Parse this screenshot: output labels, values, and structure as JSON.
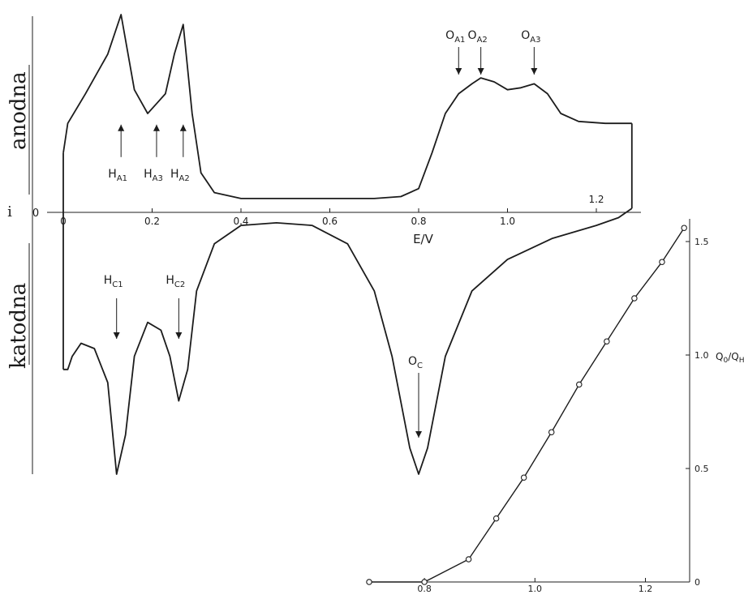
{
  "chart_data": [
    {
      "type": "line",
      "description_words": {
        "side_label_top": "anodna",
        "side_label_bottom": "katodna",
        "current_symbol": "i",
        "zero_label": "0"
      },
      "xlabel": "E/V",
      "x_ticks": [
        "0",
        "0.2",
        "0.4",
        "0.6",
        "0.8",
        "1.0",
        "1.2"
      ],
      "x_tick_values": [
        0,
        0.2,
        0.4,
        0.6,
        0.8,
        1.0,
        1.2
      ],
      "xlim": [
        -0.03,
        1.28
      ],
      "ylim": [
        -1.0,
        1.0
      ],
      "series": [
        {
          "name": "",
          "role": "anodic",
          "x": [
            0.0,
            0.01,
            0.05,
            0.1,
            0.13,
            0.16,
            0.19,
            0.21,
            0.23,
            0.25,
            0.27,
            0.29,
            0.31,
            0.34,
            0.4,
            0.5,
            0.6,
            0.7,
            0.76,
            0.8,
            0.83,
            0.86,
            0.89,
            0.92,
            0.94,
            0.97,
            1.0,
            1.03,
            1.06,
            1.09,
            1.12,
            1.16,
            1.22,
            1.28
          ],
          "y": [
            0.3,
            0.45,
            0.6,
            0.8,
            1.0,
            0.62,
            0.5,
            0.55,
            0.6,
            0.8,
            0.95,
            0.5,
            0.2,
            0.1,
            0.07,
            0.07,
            0.07,
            0.07,
            0.08,
            0.12,
            0.3,
            0.5,
            0.6,
            0.65,
            0.68,
            0.66,
            0.62,
            0.63,
            0.65,
            0.6,
            0.5,
            0.46,
            0.45,
            0.45
          ]
        },
        {
          "name": "",
          "role": "cathodic",
          "x": [
            1.28,
            1.25,
            1.2,
            1.1,
            1.0,
            0.92,
            0.86,
            0.82,
            0.8,
            0.78,
            0.74,
            0.7,
            0.64,
            0.56,
            0.48,
            0.4,
            0.34,
            0.3,
            0.28,
            0.26,
            0.24,
            0.22,
            0.19,
            0.16,
            0.14,
            0.12,
            0.1,
            0.07,
            0.04,
            0.02,
            0.01,
            0.0
          ],
          "y": [
            0.02,
            -0.02,
            -0.05,
            -0.1,
            -0.18,
            -0.3,
            -0.55,
            -0.9,
            -1.0,
            -0.9,
            -0.55,
            -0.3,
            -0.12,
            -0.05,
            -0.04,
            -0.05,
            -0.12,
            -0.3,
            -0.6,
            -0.72,
            -0.55,
            -0.45,
            -0.42,
            -0.55,
            -0.85,
            -1.0,
            -0.65,
            -0.52,
            -0.5,
            -0.55,
            -0.6,
            -0.6
          ]
        }
      ],
      "annotations": [
        {
          "text": "H",
          "sub": "A1",
          "x": 0.13,
          "kind": "up-arrow"
        },
        {
          "text": "H",
          "sub": "A3",
          "x": 0.21,
          "kind": "up-arrow"
        },
        {
          "text": "H",
          "sub": "A2",
          "x": 0.27,
          "kind": "up-arrow"
        },
        {
          "text": "O",
          "sub": "A1",
          "x": 0.89,
          "kind": "down-arrow"
        },
        {
          "text": "O",
          "sub": "A2",
          "x": 0.94,
          "kind": "down-arrow"
        },
        {
          "text": "O",
          "sub": "A3",
          "x": 1.06,
          "kind": "down-arrow"
        },
        {
          "text": "H",
          "sub": "C1",
          "x": 0.12,
          "kind": "down-arrow"
        },
        {
          "text": "H",
          "sub": "C2",
          "x": 0.26,
          "kind": "down-arrow"
        },
        {
          "text": "O",
          "sub": "C",
          "x": 0.8,
          "kind": "down-arrow"
        }
      ]
    },
    {
      "type": "scatter",
      "xlabel": "",
      "ylabel": "Qₒ/Qₕ",
      "ylabel_parts": {
        "main": "Q",
        "sub1": "0",
        "slash": "/",
        "main2": "Q",
        "sub2": "H"
      },
      "x_ticks": [
        "0.8",
        "1.0",
        "1.2"
      ],
      "x_tick_values": [
        0.8,
        1.0,
        1.2
      ],
      "y_ticks": [
        "0",
        "0.5",
        "1.0",
        "1.5"
      ],
      "y_tick_values": [
        0,
        0.5,
        1.0,
        1.5
      ],
      "xlim": [
        0.7,
        1.28
      ],
      "ylim": [
        0,
        1.6
      ],
      "points": {
        "x": [
          0.7,
          0.8,
          0.88,
          0.93,
          0.98,
          1.03,
          1.08,
          1.13,
          1.18,
          1.23,
          1.27
        ],
        "y": [
          0.0,
          0.0,
          0.1,
          0.28,
          0.46,
          0.66,
          0.87,
          1.06,
          1.25,
          1.41,
          1.56
        ]
      }
    }
  ],
  "colors": {
    "ink": "#1c1c1c",
    "background": "#ffffff"
  }
}
